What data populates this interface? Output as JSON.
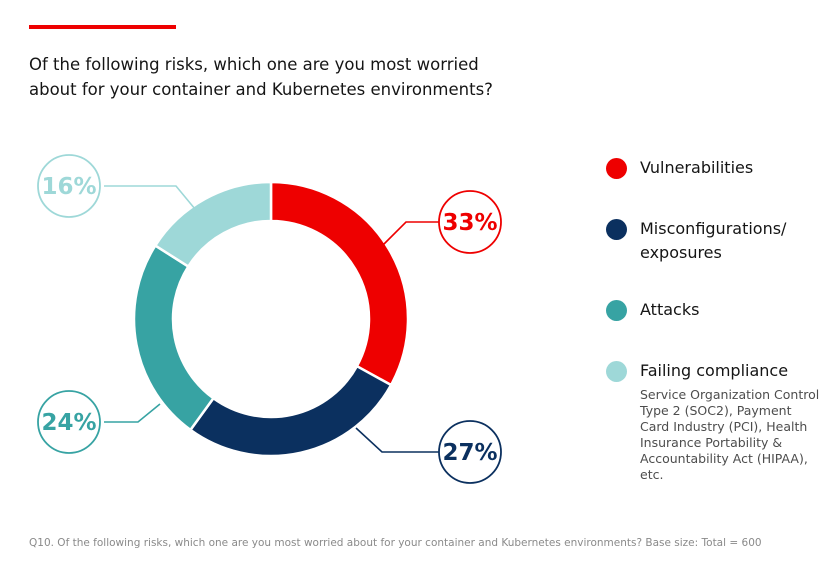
{
  "title": "Of the following risks, which one are you most worried about for your container and Kubernetes environments?",
  "footnote": "Q10. Of the following risks, which one are you most worried about for your container and Kubernetes environments? Base size: Total = 600",
  "colors": {
    "accent": "#ee0000"
  },
  "chart_data": {
    "type": "pie",
    "variant": "donut",
    "slices": [
      {
        "label": "Vulnerabilities",
        "value": 33,
        "display": "33%",
        "color": "#ee0000"
      },
      {
        "label": "Misconfigurations/ exposures",
        "value": 27,
        "display": "27%",
        "color": "#0b305f"
      },
      {
        "label": "Attacks",
        "value": 24,
        "display": "24%",
        "color": "#37a3a3"
      },
      {
        "label": "Failing compliance",
        "value": 16,
        "display": "16%",
        "color": "#9ed8d8"
      }
    ],
    "legend": {
      "placement": "right",
      "items": [
        {
          "label": "Vulnerabilities",
          "color": "#ee0000"
        },
        {
          "label": "Misconfigurations/ exposures",
          "color": "#0b305f"
        },
        {
          "label": "Attacks",
          "color": "#37a3a3"
        },
        {
          "label": "Failing compliance",
          "color": "#9ed8d8",
          "note": "Service Organization Control Type 2 (SOC2), Payment Card Industry (PCI), Health Insurance Portability & Accountability Act (HIPAA), etc."
        }
      ]
    }
  }
}
